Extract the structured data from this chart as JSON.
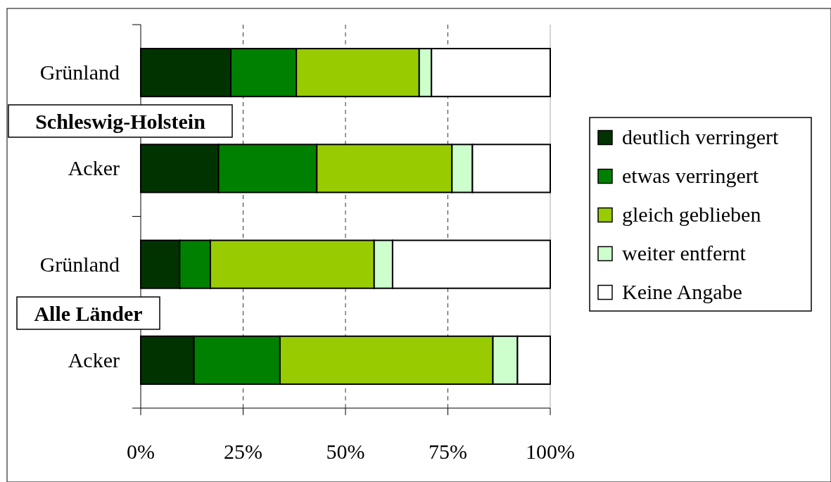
{
  "chart_data": {
    "type": "bar",
    "orientation": "horizontal",
    "stacked": true,
    "categories": [
      "Grünland",
      "Acker",
      "Grünland",
      "Acker"
    ],
    "series": [
      {
        "name": "deutlich verringert",
        "color": "#003300",
        "values": [
          22,
          19,
          9.5,
          13
        ]
      },
      {
        "name": "etwas verringert",
        "color": "#008000",
        "values": [
          16,
          24,
          7.5,
          21
        ]
      },
      {
        "name": "gleich geblieben",
        "color": "#99cc00",
        "values": [
          30,
          33,
          40,
          52
        ]
      },
      {
        "name": "weiter entfernt",
        "color": "#ccffcc",
        "values": [
          3,
          5,
          4.5,
          6
        ]
      },
      {
        "name": "Keine Angabe",
        "color": "#ffffff",
        "values": [
          29,
          19,
          38.5,
          8
        ]
      }
    ],
    "xlim": [
      0,
      100
    ],
    "xticks": [
      {
        "value": 0,
        "label": "0%"
      },
      {
        "value": 25,
        "label": "25%"
      },
      {
        "value": 50,
        "label": "50%"
      },
      {
        "value": 75,
        "label": "75%"
      },
      {
        "value": 100,
        "label": "100%"
      }
    ],
    "grid": "x",
    "legend": "right",
    "annotations": [
      "Schleswig-Holstein",
      "Alle Länder"
    ]
  }
}
